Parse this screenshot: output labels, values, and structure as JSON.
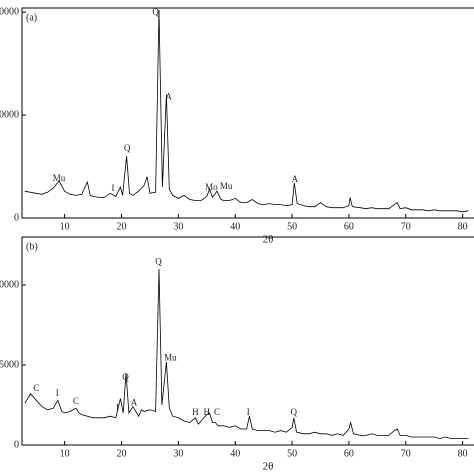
{
  "chart_data": [
    {
      "type": "line",
      "panel_label": "(a)",
      "xlabel": "2θ",
      "xlim": [
        2.5,
        82
      ],
      "ylim": [
        0,
        20400
      ],
      "xticks": [
        10,
        20,
        30,
        40,
        50,
        60,
        70,
        80
      ],
      "yticks": [
        0,
        {
          "value": 10000,
          "label": "0000"
        },
        {
          "value": 20000,
          "label": "0000"
        }
      ],
      "x": [
        3,
        4,
        5,
        6,
        7,
        8,
        9,
        10,
        11,
        12,
        13,
        14,
        14.5,
        15,
        16,
        17,
        18,
        19,
        19.8,
        20.2,
        20.9,
        21.4,
        22,
        23,
        24,
        24.5,
        25,
        26,
        26.6,
        27.2,
        27.9,
        28.4,
        29,
        30,
        31,
        32,
        33,
        34,
        35,
        35.5,
        36,
        36.8,
        37.5,
        38,
        39,
        40,
        41,
        42,
        43,
        44,
        45,
        46,
        47,
        48,
        49,
        50,
        50.4,
        50.9,
        52,
        53,
        54,
        55,
        56,
        57,
        58,
        59,
        60,
        60.2,
        60.6,
        62,
        63,
        64,
        65,
        66,
        67,
        68,
        68.5,
        69,
        70,
        71,
        72,
        73,
        74,
        75,
        76,
        77,
        78,
        79,
        80,
        81
      ],
      "series": [
        {
          "color": "#000000",
          "values": [
            2600,
            2500,
            2400,
            2300,
            2500,
            2900,
            3600,
            2600,
            2300,
            2200,
            2300,
            3500,
            2200,
            2100,
            2000,
            2000,
            2400,
            2100,
            3000,
            2200,
            6000,
            2400,
            2200,
            2600,
            3200,
            4000,
            2400,
            2500,
            20200,
            3000,
            12000,
            2800,
            2200,
            1900,
            2200,
            1800,
            1700,
            1700,
            2100,
            2800,
            2000,
            2600,
            1800,
            1700,
            1700,
            1900,
            1500,
            1500,
            1800,
            1400,
            1300,
            1400,
            1300,
            1300,
            1200,
            1300,
            3400,
            1400,
            1200,
            1100,
            1100,
            1500,
            1100,
            1000,
            1000,
            1000,
            1200,
            2000,
            1100,
            1000,
            900,
            1000,
            900,
            900,
            900,
            1300,
            1500,
            900,
            1000,
            800,
            800,
            800,
            700,
            800,
            700,
            700,
            700,
            700,
            600,
            700
          ]
        }
      ],
      "annotations": [
        {
          "text": "Mu",
          "x": 9,
          "y": 3800
        },
        {
          "text": "I",
          "x": 18.5,
          "y": 2800
        },
        {
          "text": "Q",
          "x": 21,
          "y": 6700
        },
        {
          "text": "Q",
          "x": 26,
          "y": 19900
        },
        {
          "text": "A",
          "x": 28.3,
          "y": 11700
        },
        {
          "text": "Mo",
          "x": 35.8,
          "y": 2900
        },
        {
          "text": "Mu",
          "x": 38.4,
          "y": 3000
        },
        {
          "text": "A",
          "x": 50.5,
          "y": 3700
        }
      ]
    },
    {
      "type": "line",
      "panel_label": "(b)",
      "xlabel": "2θ",
      "xlim": [
        2.5,
        82
      ],
      "ylim": [
        0,
        13000
      ],
      "xticks": [
        10,
        20,
        30,
        40,
        50,
        60,
        70,
        80
      ],
      "yticks": [
        0,
        {
          "value": 5000,
          "label": "5000"
        },
        {
          "value": 10000,
          "label": "0000"
        }
      ],
      "x": [
        3,
        4,
        5,
        6,
        7,
        8,
        8.8,
        9.5,
        10,
        11,
        12,
        12.5,
        13,
        14,
        15,
        16,
        17,
        18,
        19,
        19.8,
        20.3,
        20.8,
        21.3,
        22,
        23,
        23.5,
        24,
        25,
        26,
        26.6,
        27.1,
        27.9,
        28.4,
        29,
        30,
        31,
        32,
        33,
        33.5,
        34,
        35,
        35.5,
        36,
        36.5,
        37,
        38,
        39,
        40,
        41,
        42,
        42.5,
        43,
        44,
        45,
        46,
        47,
        48,
        49,
        50,
        50.3,
        50.8,
        52,
        53,
        54,
        55,
        56,
        57,
        58,
        59,
        60,
        60.3,
        60.8,
        62,
        63,
        64,
        65,
        66,
        67,
        68,
        68.5,
        69,
        70,
        71,
        72,
        73,
        74,
        75,
        76,
        77,
        78,
        79,
        80,
        81
      ],
      "series": [
        {
          "color": "#000000",
          "values": [
            2600,
            3200,
            2800,
            2400,
            2200,
            2300,
            2800,
            2100,
            2000,
            2100,
            2300,
            2000,
            1900,
            1800,
            1700,
            1700,
            1700,
            1800,
            1700,
            2900,
            2000,
            4500,
            2000,
            2400,
            1800,
            2200,
            2100,
            2200,
            2100,
            11000,
            2500,
            5200,
            2300,
            1800,
            1700,
            1500,
            1400,
            1700,
            1300,
            1500,
            1900,
            2000,
            1400,
            1400,
            1200,
            1200,
            1100,
            1200,
            1000,
            1000,
            1800,
            1000,
            900,
            900,
            900,
            800,
            900,
            800,
            1100,
            1700,
            800,
            700,
            700,
            800,
            700,
            700,
            600,
            700,
            600,
            1000,
            1400,
            700,
            600,
            600,
            700,
            600,
            600,
            600,
            900,
            1000,
            600,
            600,
            500,
            500,
            500,
            500,
            500,
            400,
            500,
            400,
            400,
            400,
            400
          ]
        }
      ],
      "annotations": [
        {
          "text": "C",
          "x": 5,
          "y": 3500
        },
        {
          "text": "I",
          "x": 8.7,
          "y": 3200
        },
        {
          "text": "C",
          "x": 12,
          "y": 2700
        },
        {
          "text": "I",
          "x": 19.3,
          "y": 2300
        },
        {
          "text": "Q",
          "x": 20.7,
          "y": 4200
        },
        {
          "text": "A",
          "x": 22.2,
          "y": 2600
        },
        {
          "text": "Q",
          "x": 26.5,
          "y": 11400
        },
        {
          "text": "Mu",
          "x": 28.6,
          "y": 5400
        },
        {
          "text": "H",
          "x": 33,
          "y": 2000
        },
        {
          "text": "H",
          "x": 35,
          "y": 2000
        },
        {
          "text": "C",
          "x": 36.8,
          "y": 2000
        },
        {
          "text": "I",
          "x": 42.3,
          "y": 2000
        },
        {
          "text": "Q",
          "x": 50.3,
          "y": 2000
        }
      ]
    }
  ]
}
